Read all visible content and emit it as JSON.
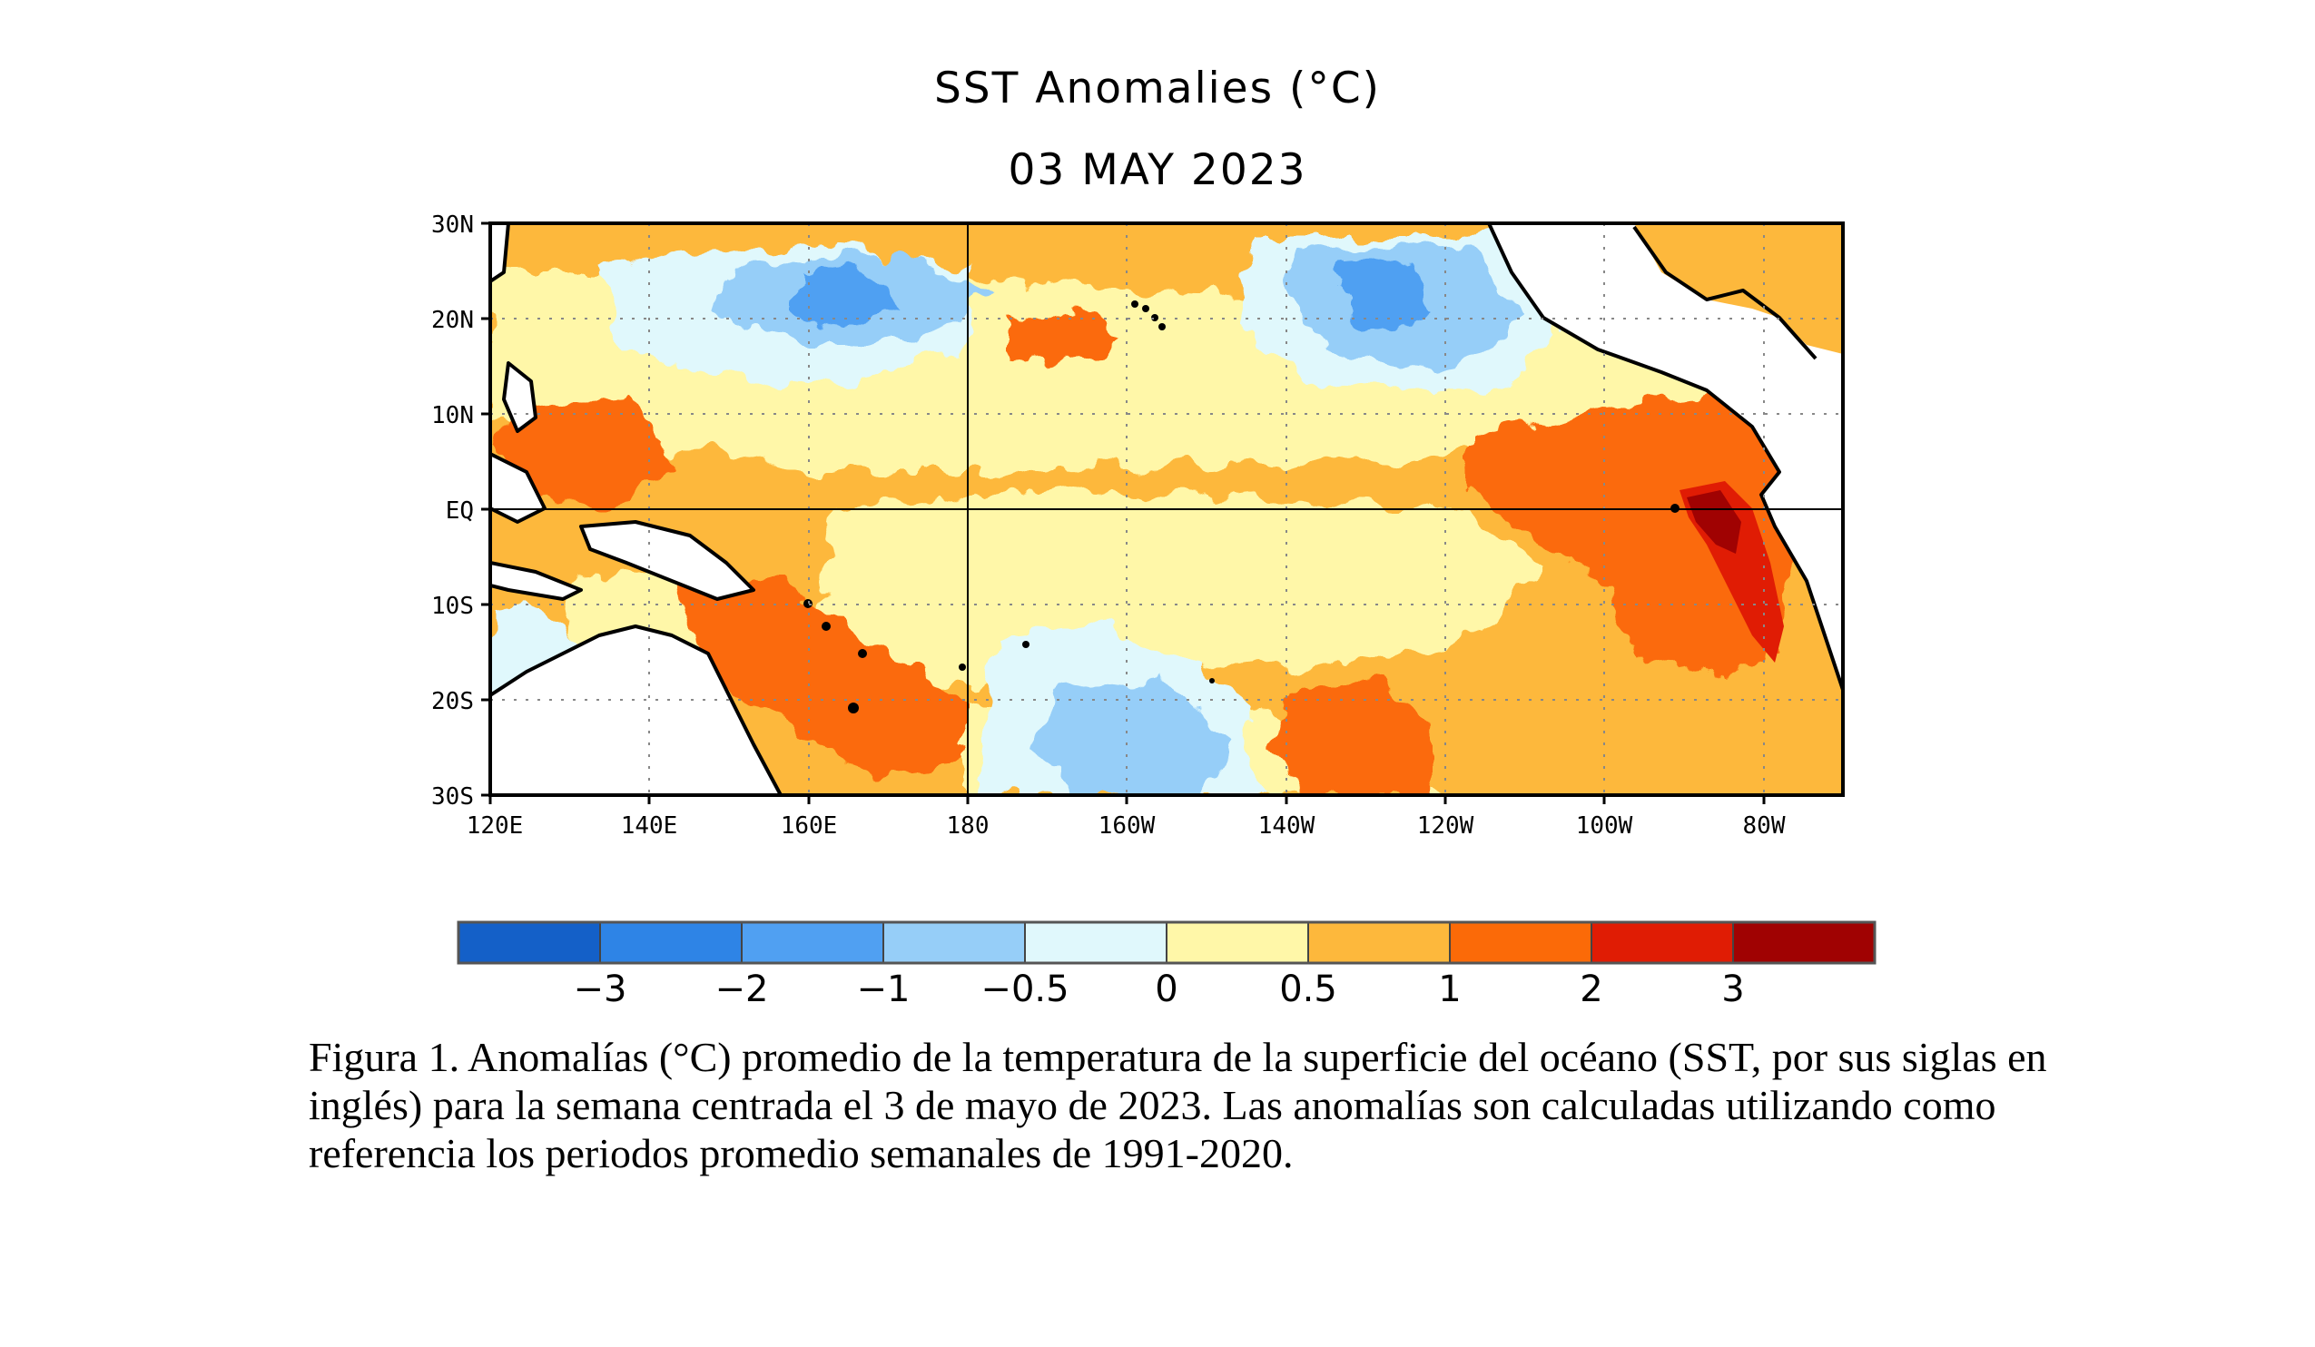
{
  "figure": {
    "title": "SST Anomalies (°C)",
    "date": "03 MAY 2023",
    "caption": "Figura 1. Anomalías (°C) promedio de la temperatura de la superficie del océano (SST, por sus siglas en inglés) para la semana centrada el 3 de mayo de 2023. Las anomalías son calculadas utilizando como referencia los periodos promedio semanales de 1991-2020."
  },
  "map": {
    "lon_range": [
      120,
      290
    ],
    "lat_range": [
      -30,
      30
    ],
    "lat_ticks": [
      "30N",
      "20N",
      "10N",
      "EQ",
      "10S",
      "20S",
      "30S"
    ],
    "lon_ticks": [
      "120E",
      "140E",
      "160E",
      "180",
      "160W",
      "140W",
      "120W",
      "100W",
      "80W"
    ],
    "grid": "dotted",
    "land_color": "#ffffff",
    "coastline_color": "#000000"
  },
  "colorbar": {
    "colors": [
      "#1460c8",
      "#2e84e6",
      "#50a0f2",
      "#96cef8",
      "#e0f8fc",
      "#fff7a8",
      "#fdb83c",
      "#fb6a08",
      "#e01c04",
      "#a00202"
    ],
    "labels": [
      "−3",
      "−2",
      "−1",
      "−0.5",
      "0",
      "0.5",
      "1",
      "2",
      "3"
    ]
  },
  "regions": [
    {
      "name": "north-subtropics",
      "level": "0.5"
    },
    {
      "name": "north-central-pacific",
      "level": "-1"
    },
    {
      "name": "northeast-pacific",
      "level": "-1"
    },
    {
      "name": "west-pacific-warm-pool",
      "level": "2"
    },
    {
      "name": "coral-sea",
      "level": "2"
    },
    {
      "name": "equatorial-central-pacific",
      "level": "0.5"
    },
    {
      "name": "eastern-equatorial-pacific",
      "level": "2"
    },
    {
      "name": "peru-coast",
      "level": "3"
    },
    {
      "name": "south-central-pacific",
      "level": "-1"
    },
    {
      "name": "south-pacific-warm-patch",
      "level": "2"
    },
    {
      "name": "caribbean",
      "level": "1"
    }
  ]
}
